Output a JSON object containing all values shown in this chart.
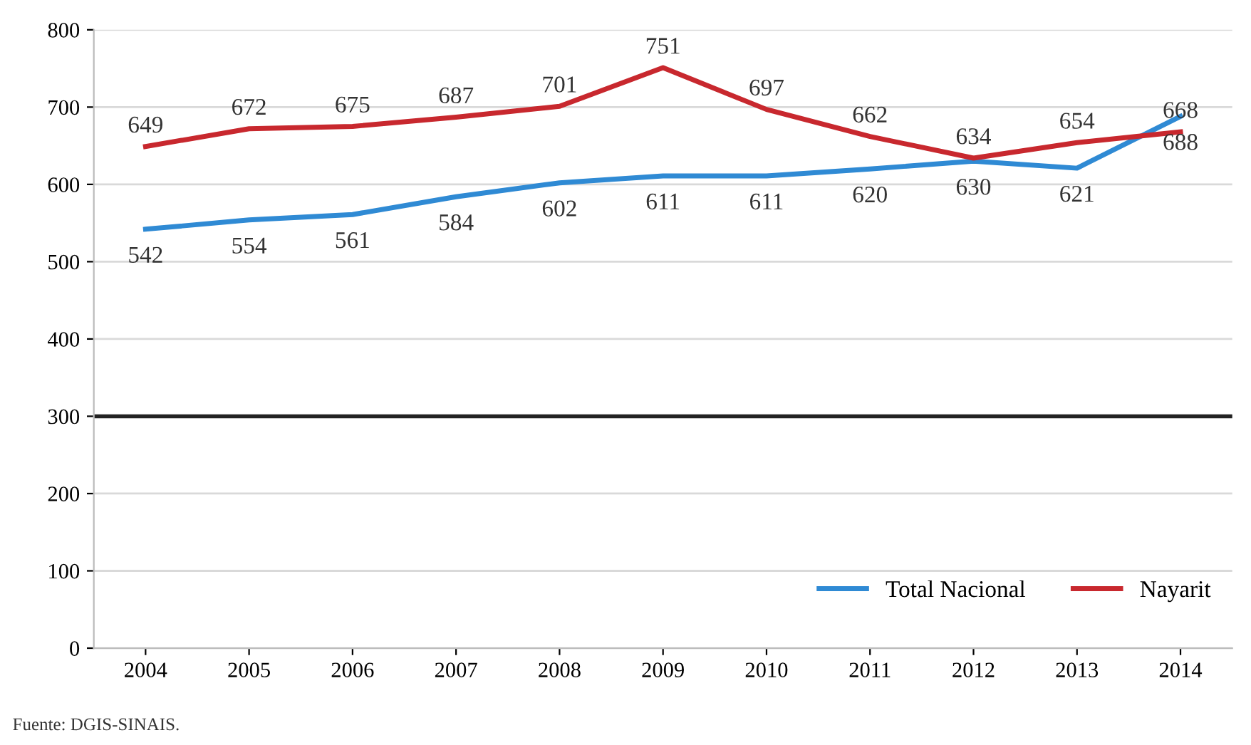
{
  "chart_data": {
    "type": "line",
    "categories": [
      "2004",
      "2005",
      "2006",
      "2007",
      "2008",
      "2009",
      "2010",
      "2011",
      "2012",
      "2013",
      "2014"
    ],
    "series": [
      {
        "name": "Total Nacional",
        "color": "#2f8ad4",
        "values": [
          542,
          554,
          561,
          584,
          602,
          611,
          611,
          620,
          630,
          621,
          688
        ]
      },
      {
        "name": "Nayarit",
        "color": "#c8282e",
        "values": [
          649,
          672,
          675,
          687,
          701,
          751,
          697,
          662,
          634,
          654,
          668
        ]
      }
    ],
    "ylim": [
      0,
      800
    ],
    "yticks": [
      0,
      100,
      200,
      300,
      400,
      500,
      600,
      700,
      800
    ],
    "ref_lines": [
      {
        "axis": "y",
        "value": 300,
        "color": "#222222"
      }
    ],
    "grid": "y",
    "legend": "bottom right",
    "data_labels": true,
    "marker": "none",
    "line_style": "solid",
    "annotations": [
      "Fuente: DGIS-SINAIS."
    ]
  }
}
